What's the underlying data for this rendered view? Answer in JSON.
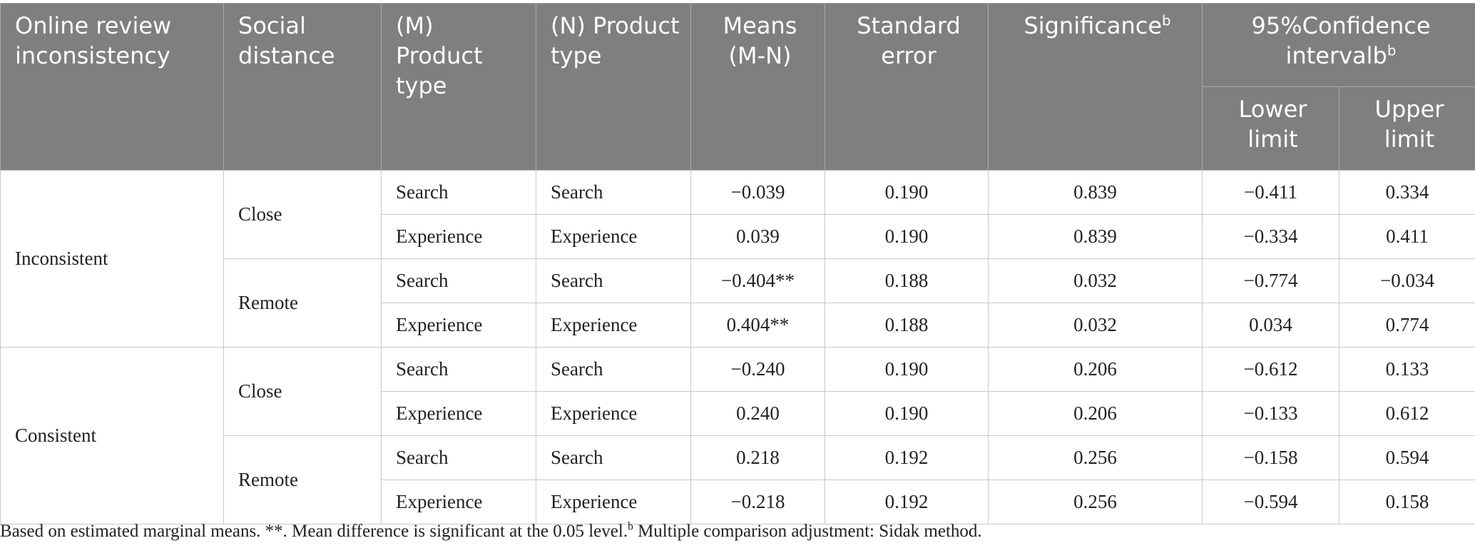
{
  "headers": {
    "inconsistency": "Online review inconsistency",
    "social_distance": "Social distance",
    "product_m": "(M) Product type",
    "product_n": "(N) Product type",
    "means": "Means (M-N)",
    "std_error": "Standard error",
    "significance": "Significance",
    "significance_sup": "b",
    "ci": "95%Confidence intervalb",
    "ci_sup": "b",
    "lower": "Lower limit",
    "upper": "Upper limit"
  },
  "groups": [
    {
      "inconsistency": "Inconsistent",
      "distances": [
        {
          "label": "Close",
          "rows": [
            {
              "m": "Search",
              "n": "Search",
              "means": "−0.039",
              "se": "0.190",
              "sig": "0.839",
              "lower": "−0.411",
              "upper": "0.334"
            },
            {
              "m": "Experience",
              "n": "Experience",
              "means": "0.039",
              "se": "0.190",
              "sig": "0.839",
              "lower": "−0.334",
              "upper": "0.411"
            }
          ]
        },
        {
          "label": "Remote",
          "rows": [
            {
              "m": "Search",
              "n": "Search",
              "means": "−0.404**",
              "se": "0.188",
              "sig": "0.032",
              "lower": "−0.774",
              "upper": "−0.034"
            },
            {
              "m": "Experience",
              "n": "Experience",
              "means": "0.404**",
              "se": "0.188",
              "sig": "0.032",
              "lower": "0.034",
              "upper": "0.774"
            }
          ]
        }
      ]
    },
    {
      "inconsistency": "Consistent",
      "distances": [
        {
          "label": "Close",
          "rows": [
            {
              "m": "Search",
              "n": "Search",
              "means": "−0.240",
              "se": "0.190",
              "sig": "0.206",
              "lower": "−0.612",
              "upper": "0.133"
            },
            {
              "m": "Experience",
              "n": "Experience",
              "means": "0.240",
              "se": "0.190",
              "sig": "0.206",
              "lower": "−0.133",
              "upper": "0.612"
            }
          ]
        },
        {
          "label": "Remote",
          "rows": [
            {
              "m": "Search",
              "n": "Search",
              "means": "0.218",
              "se": "0.192",
              "sig": "0.256",
              "lower": "−0.158",
              "upper": "0.594"
            },
            {
              "m": "Experience",
              "n": "Experience",
              "means": "−0.218",
              "se": "0.192",
              "sig": "0.256",
              "lower": "−0.594",
              "upper": "0.158"
            }
          ]
        }
      ]
    }
  ],
  "footnote": {
    "part1": "Based on estimated marginal means. **. Mean difference is significant at the 0.05 level.",
    "sup": "b",
    "part2": " Multiple comparison adjustment: Sidak method."
  }
}
